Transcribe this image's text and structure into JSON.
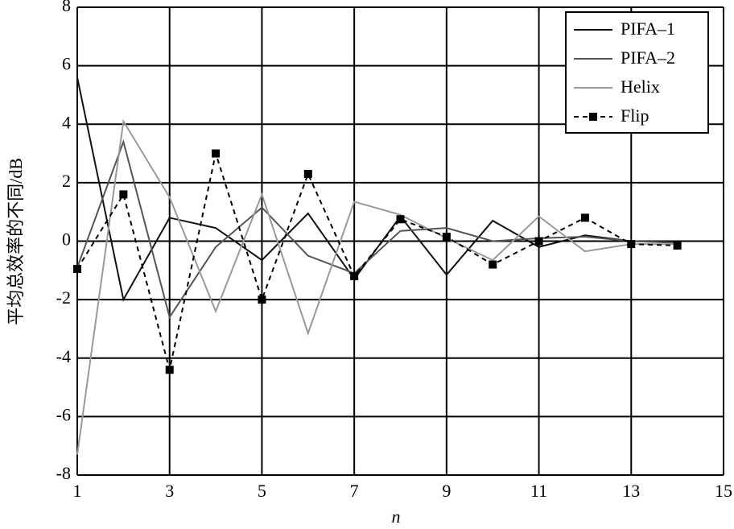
{
  "chart_data": {
    "type": "line",
    "ylabel": "平均总效率的不同/dB",
    "xlabel": "n",
    "x": [
      1,
      2,
      3,
      4,
      5,
      6,
      7,
      8,
      9,
      10,
      11,
      12,
      13,
      14
    ],
    "xlim": [
      1,
      15
    ],
    "xticks": [
      1,
      3,
      5,
      7,
      9,
      11,
      13,
      15
    ],
    "ylim": [
      -8,
      8
    ],
    "yticks": [
      -8,
      -6,
      -4,
      -2,
      0,
      2,
      4,
      6,
      8
    ],
    "grid": true,
    "legend": "upper right",
    "series": [
      {
        "name": "PIFA–1",
        "color": "#111111",
        "values": [
          5.6,
          -2.0,
          0.8,
          0.45,
          -0.65,
          0.95,
          -1.3,
          0.85,
          -1.15,
          0.7,
          -0.2,
          0.2,
          0.0,
          -0.05
        ]
      },
      {
        "name": "PIFA–2",
        "color": "#555555",
        "values": [
          -0.9,
          3.4,
          -2.6,
          -0.2,
          1.15,
          -0.5,
          -1.1,
          0.35,
          0.45,
          0.0,
          0.1,
          0.15,
          0.0,
          -0.05
        ]
      },
      {
        "name": "Helix",
        "color": "#999999",
        "values": [
          -7.3,
          4.1,
          1.5,
          -2.4,
          1.6,
          -3.15,
          1.35,
          0.9,
          0.1,
          -0.65,
          0.85,
          -0.35,
          -0.1,
          -0.1
        ]
      },
      {
        "name": "Flip",
        "color": "#000000",
        "dashed": true,
        "marker": "square",
        "values": [
          -0.95,
          1.6,
          -4.4,
          3.0,
          -2.0,
          2.3,
          -1.2,
          0.75,
          0.15,
          -0.8,
          0.0,
          0.8,
          -0.1,
          -0.15
        ]
      }
    ]
  }
}
